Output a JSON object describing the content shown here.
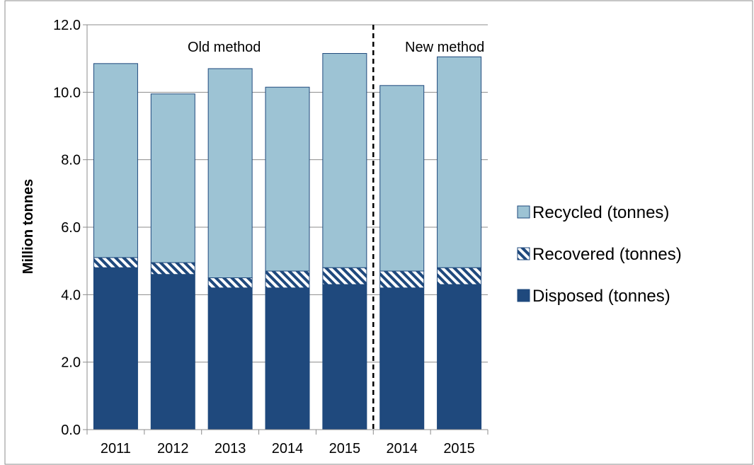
{
  "chart_data": {
    "type": "bar",
    "stacked": true,
    "categories": [
      "2011",
      "2012",
      "2013",
      "2014",
      "2015",
      "2014",
      "2015"
    ],
    "series": [
      {
        "name": "Disposed (tonnes)",
        "values": [
          4.8,
          4.6,
          4.2,
          4.2,
          4.3,
          4.2,
          4.3
        ]
      },
      {
        "name": "Recovered (tonnes)",
        "values": [
          0.3,
          0.35,
          0.3,
          0.5,
          0.5,
          0.5,
          0.5
        ]
      },
      {
        "name": "Recycled (tonnes)",
        "values": [
          5.75,
          5.0,
          6.2,
          5.45,
          6.35,
          5.5,
          6.25
        ]
      }
    ],
    "ylabel": "Million tonnes",
    "ylim": [
      0,
      12
    ],
    "yticks": [
      "0.0",
      "2.0",
      "4.0",
      "6.0",
      "8.0",
      "10.0",
      "12.0"
    ],
    "grid": true,
    "legend": {
      "placement": "right",
      "order": [
        "Recycled (tonnes)",
        "Recovered (tonnes)",
        "Disposed (tonnes)"
      ]
    },
    "annotations": {
      "old_label": "Old method",
      "new_label": "New method",
      "divider_after_category_index": 4
    },
    "colors": {
      "disposed": "#1f497d",
      "recovered_stripe": "#1f497d",
      "recycled": "#9dc3d4",
      "outline": "#1f497d",
      "grid": "#8c8c8c"
    }
  }
}
